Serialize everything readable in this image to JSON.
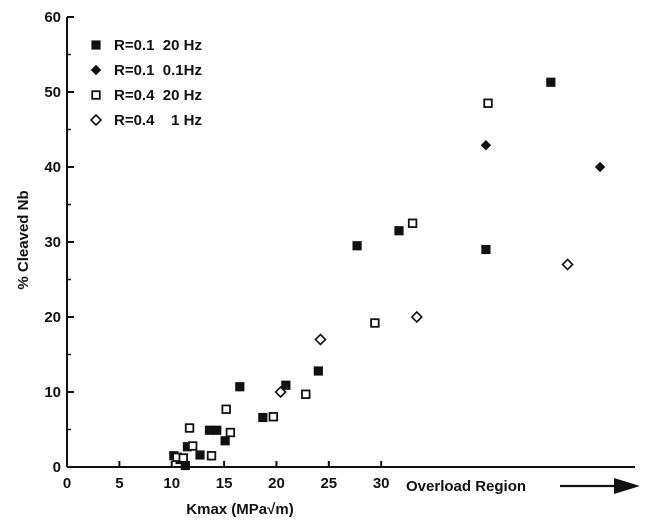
{
  "chart_data": {
    "type": "scatter",
    "title": "",
    "xlabel": "Kmax (MPa√m)",
    "ylabel": "% Cleaved Nb",
    "xlim": [
      0,
      55
    ],
    "ylim": [
      0,
      60
    ],
    "xticks": [
      0,
      5,
      10,
      15,
      20,
      25,
      30
    ],
    "yticks": [
      0,
      10,
      20,
      30,
      40,
      50,
      60
    ],
    "grid": false,
    "legend_position": "top-left",
    "annotation": "Overload Region",
    "series": [
      {
        "name": "R=0.1  20 Hz",
        "marker": "filled-square",
        "points": [
          [
            10.2,
            1.5
          ],
          [
            10.8,
            1.0
          ],
          [
            11.3,
            0.2
          ],
          [
            11.5,
            2.7
          ],
          [
            12.7,
            1.6
          ],
          [
            13.6,
            4.9
          ],
          [
            14.3,
            4.9
          ],
          [
            15.1,
            3.5
          ],
          [
            16.5,
            10.7
          ],
          [
            18.7,
            6.6
          ],
          [
            20.9,
            10.9
          ],
          [
            24.0,
            12.8
          ],
          [
            27.7,
            29.5
          ],
          [
            31.7,
            31.5
          ],
          [
            40.0,
            29.0
          ],
          [
            46.2,
            51.3
          ]
        ]
      },
      {
        "name": "R=0.1  0.1Hz",
        "marker": "filled-diamond",
        "points": [
          [
            40.0,
            42.9
          ],
          [
            50.9,
            40.0
          ]
        ]
      },
      {
        "name": "R=0.4  20 Hz",
        "marker": "open-square",
        "points": [
          [
            10.5,
            1.3
          ],
          [
            11.1,
            1.2
          ],
          [
            11.7,
            5.2
          ],
          [
            12.0,
            2.8
          ],
          [
            13.8,
            1.5
          ],
          [
            15.2,
            7.7
          ],
          [
            15.6,
            4.6
          ],
          [
            19.7,
            6.7
          ],
          [
            22.8,
            9.7
          ],
          [
            29.4,
            19.2
          ],
          [
            33.0,
            32.5
          ],
          [
            40.2,
            48.5
          ]
        ]
      },
      {
        "name": "R=0.4    1 Hz",
        "marker": "open-diamond",
        "points": [
          [
            20.4,
            10.0
          ],
          [
            24.2,
            17.0
          ],
          [
            33.4,
            20.0
          ],
          [
            47.8,
            27.0
          ]
        ]
      }
    ]
  }
}
